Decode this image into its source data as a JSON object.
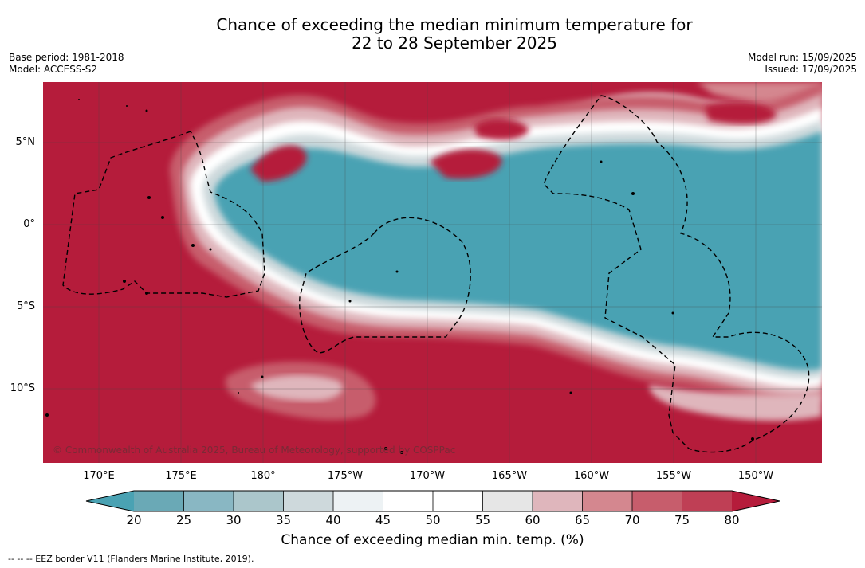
{
  "title_line1": "Chance of exceeding the median minimum temperature for",
  "title_line2": "22 to 28 September 2025",
  "base_period": "Base period: 1981-2018",
  "model": "Model: ACCESS-S2",
  "model_run": "Model run: 15/09/2025",
  "issued": "Issued: 17/09/2025",
  "lat_labels": [
    "5°N",
    "0°",
    "5°S",
    "10°S"
  ],
  "lon_labels": [
    "170°E",
    "175°E",
    "180°",
    "175°W",
    "170°W",
    "165°W",
    "160°W",
    "155°W",
    "150°W"
  ],
  "credit": "© Commonwealth of Australia 2025, Bureau of Meteorology, supported by COSPPac",
  "colorbar": {
    "ticks": [
      "20",
      "25",
      "30",
      "35",
      "40",
      "45",
      "50",
      "55",
      "60",
      "65",
      "70",
      "75",
      "80"
    ],
    "colors": [
      "#4aa2b3",
      "#6aa9b6",
      "#89b7c3",
      "#abc6cb",
      "#ced9dc",
      "#edf2f4",
      "#ffffff",
      "#ffffff",
      "#e6e6e6",
      "#dfb6bc",
      "#d4878f",
      "#c75d6c",
      "#bf3f55",
      "#b51c3b"
    ],
    "label": "Chance of exceeding median min. temp. (%)"
  },
  "eez_note": "--  --  -- EEZ border V11 (Flanders Marine Institute, 2019)."
}
